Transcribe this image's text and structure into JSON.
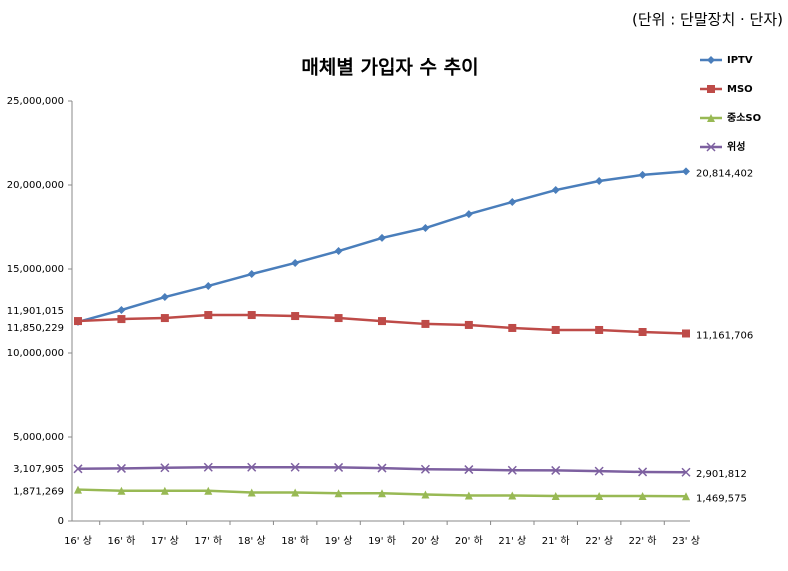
{
  "chart_data": {
    "type": "line",
    "title": "매체별 가입자 수 추이",
    "subtitle": "(단위 : 단말장치 · 단자)",
    "categories": [
      "16' 상",
      "16' 하",
      "17' 상",
      "17' 하",
      "18' 상",
      "18' 하",
      "19' 상",
      "19' 하",
      "20' 상",
      "20' 하",
      "21' 상",
      "21' 하",
      "22' 상",
      "22' 하",
      "23' 상"
    ],
    "series": [
      {
        "name": "IPTV",
        "color": "#4a7ebb",
        "marker": "diamond",
        "values": [
          11850229,
          12560000,
          13330000,
          13990000,
          14700000,
          15360000,
          16070000,
          16850000,
          17440000,
          18270000,
          18990000,
          19700000,
          20240000,
          20600000,
          20814402
        ],
        "value_labels": [
          "11,850,229",
          null,
          null,
          null,
          null,
          null,
          null,
          null,
          null,
          null,
          null,
          null,
          null,
          null,
          "20,814,402"
        ]
      },
      {
        "name": "MSO",
        "color": "#be4b48",
        "marker": "square",
        "values": [
          11901015,
          12020000,
          12080000,
          12260000,
          12260000,
          12200000,
          12080000,
          11900000,
          11730000,
          11670000,
          11490000,
          11370000,
          11370000,
          11250000,
          11161706
        ],
        "value_labels": [
          "11,901,015",
          null,
          null,
          null,
          null,
          null,
          null,
          null,
          null,
          null,
          null,
          null,
          null,
          null,
          "11,161,706"
        ]
      },
      {
        "name": "중소SO",
        "color": "#98b954",
        "marker": "triangle",
        "values": [
          1871269,
          1800000,
          1800000,
          1800000,
          1700000,
          1700000,
          1650000,
          1650000,
          1580000,
          1520000,
          1520000,
          1490000,
          1490000,
          1490000,
          1469575
        ],
        "value_labels": [
          "1,871,269",
          null,
          null,
          null,
          null,
          null,
          null,
          null,
          null,
          null,
          null,
          null,
          null,
          null,
          "1,469,575"
        ]
      },
      {
        "name": "위성",
        "color": "#7d60a0",
        "marker": "x",
        "values": [
          3107905,
          3130000,
          3170000,
          3200000,
          3200000,
          3200000,
          3190000,
          3150000,
          3080000,
          3060000,
          3020000,
          3010000,
          2970000,
          2920000,
          2901812
        ],
        "value_labels": [
          "3,107,905",
          null,
          null,
          null,
          null,
          null,
          null,
          null,
          null,
          null,
          null,
          null,
          null,
          null,
          "2,901,812"
        ]
      }
    ],
    "ylim": [
      0,
      25000000
    ],
    "yticks": [
      {
        "value": 0,
        "label": "0"
      },
      {
        "value": 5000000,
        "label": "5,000,000"
      },
      {
        "value": 10000000,
        "label": "10,000,000"
      },
      {
        "value": 15000000,
        "label": "15,000,000"
      },
      {
        "value": 20000000,
        "label": "20,000,000"
      },
      {
        "value": 25000000,
        "label": "25,000,000"
      }
    ],
    "legend": "upper right"
  }
}
